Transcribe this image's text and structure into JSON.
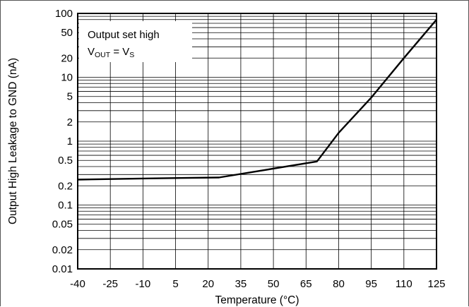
{
  "chart_data": {
    "type": "line",
    "xlabel": "Temperature (°C)",
    "ylabel": "Output High Leakage to GND (nA)",
    "xlim": [
      -40,
      125
    ],
    "ylim": [
      0.01,
      100
    ],
    "y_scale": "log",
    "grid": true,
    "x_ticks": [
      "-40",
      "-25",
      "-10",
      "5",
      "20",
      "35",
      "50",
      "65",
      "80",
      "95",
      "110",
      "125"
    ],
    "y_ticks": [
      "100",
      "50",
      "20",
      "10",
      "5",
      "2",
      "1",
      "0.5",
      "0.2",
      "0.1",
      "0.05",
      "0.02",
      "0.01"
    ],
    "annotation": {
      "line1": "Output set high",
      "line2_v": "V",
      "line2_out": "OUT",
      "line2_eq": " = V",
      "line2_s": "S"
    },
    "series": [
      {
        "x": [
          -40,
          -10,
          25,
          70,
          80,
          95,
          110,
          125
        ],
        "y": [
          0.25,
          0.26,
          0.27,
          0.48,
          1.35,
          4.8,
          20,
          80
        ]
      }
    ]
  }
}
